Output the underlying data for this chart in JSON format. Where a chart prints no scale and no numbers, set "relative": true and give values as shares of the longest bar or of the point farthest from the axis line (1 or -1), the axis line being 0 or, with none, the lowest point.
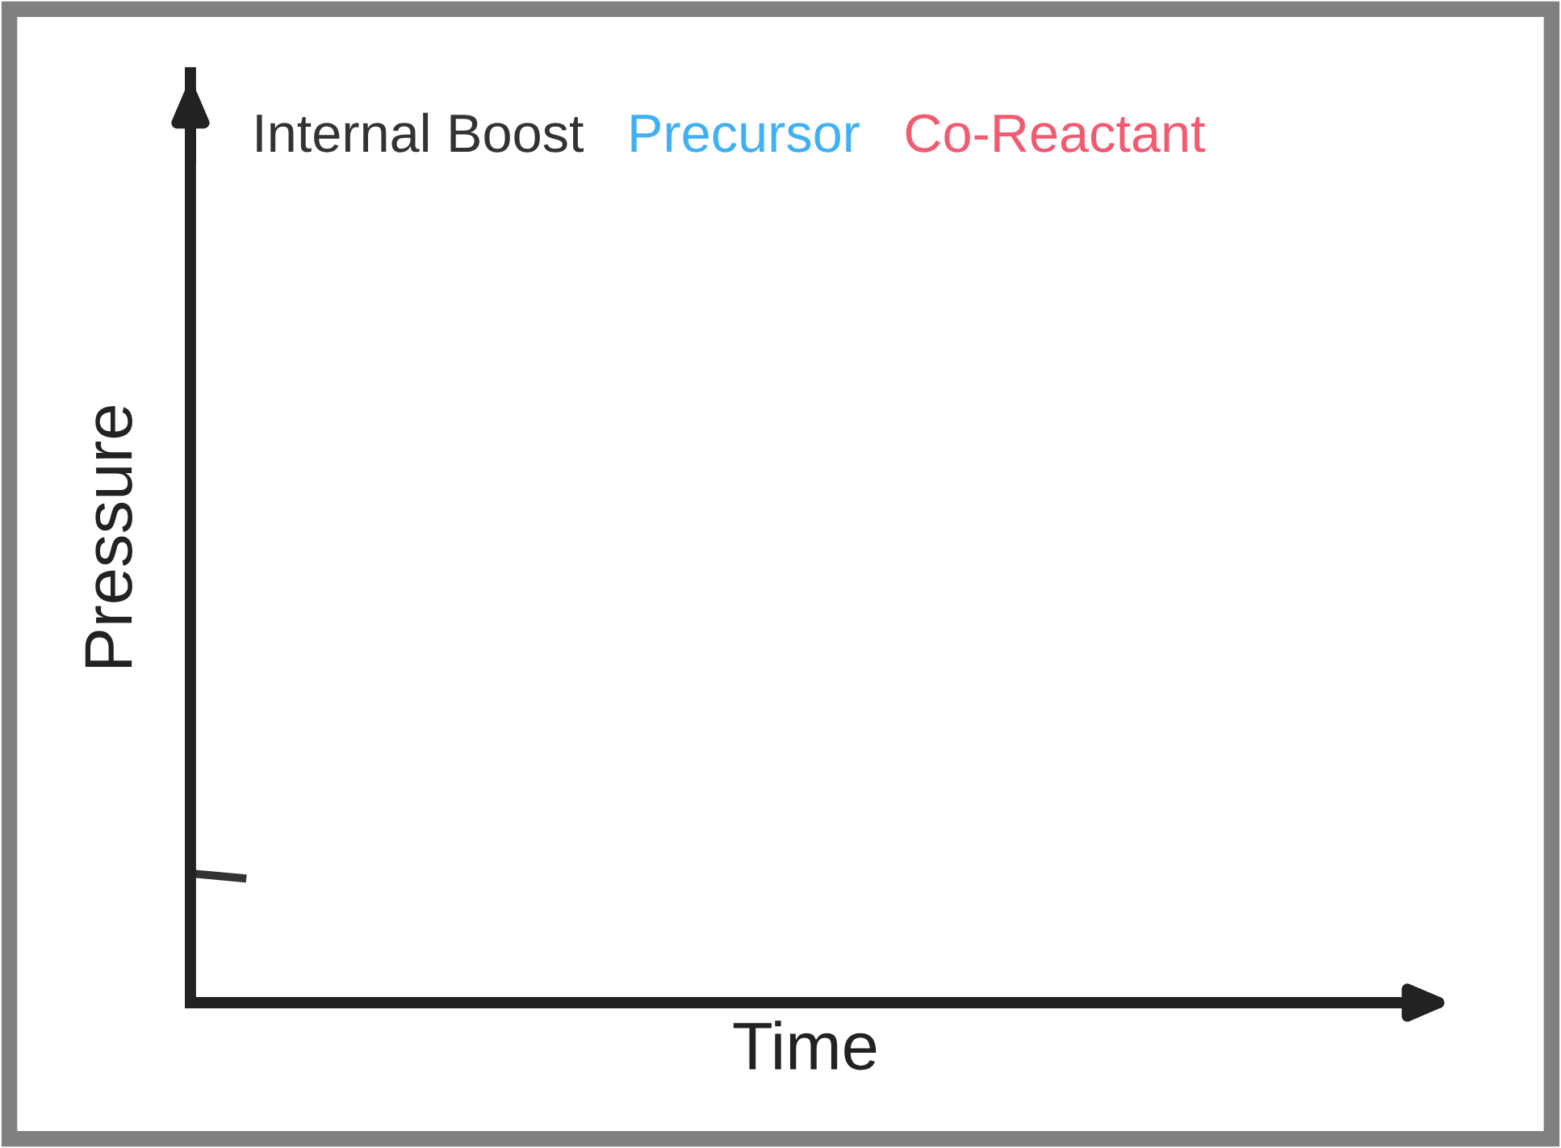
{
  "chart_data": {
    "type": "line",
    "relative": true,
    "xlabel": "Time",
    "ylabel": "Pressure",
    "categories": [
      null,
      null,
      null,
      null,
      null,
      null,
      null,
      null,
      null,
      null,
      null,
      null,
      null,
      null,
      null,
      null,
      null,
      null,
      null,
      null,
      null,
      null,
      null
    ],
    "series": [
      {
        "name": "Internal Boost",
        "color": "#333333",
        "values": [
          1,
          0.96,
          null,
          null,
          null,
          null,
          null,
          null,
          null,
          null,
          null,
          null,
          null,
          null,
          null,
          null,
          null,
          null,
          null,
          null,
          null,
          null,
          null
        ]
      },
      {
        "name": "Precursor",
        "color": "#3fb0f5",
        "values": [
          null,
          null,
          null,
          null,
          null,
          null,
          null,
          null,
          null,
          null,
          null,
          null,
          null,
          null,
          null,
          null,
          null,
          null,
          null,
          null,
          null,
          null,
          null
        ]
      },
      {
        "name": "Co-Reactant",
        "color": "#f25a70",
        "values": [
          null,
          null,
          null,
          null,
          null,
          null,
          null,
          null,
          null,
          null,
          null,
          null,
          null,
          null,
          null,
          null,
          null,
          null,
          null,
          null,
          null,
          null,
          null
        ]
      }
    ],
    "legend": "top left",
    "marker": "none",
    "line_style": "solid"
  }
}
